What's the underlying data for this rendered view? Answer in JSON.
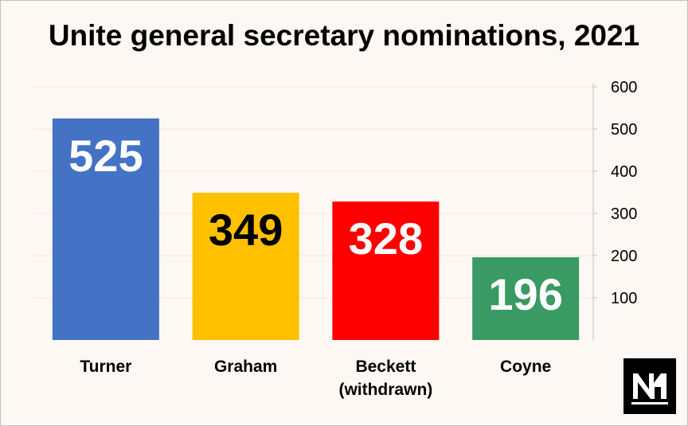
{
  "chart_data": {
    "type": "bar",
    "title": "Unite general secretary nominations, 2021",
    "categories": [
      "Turner",
      "Graham",
      "Beckett",
      "Coyne"
    ],
    "category_sublabels": [
      "",
      "",
      "(withdrawn)",
      ""
    ],
    "values": [
      525,
      349,
      328,
      196
    ],
    "colors": [
      "#4472c4",
      "#ffc000",
      "#ff0000",
      "#3a9a63"
    ],
    "label_colors": [
      "#ffffff",
      "#000000",
      "#ffffff",
      "#ffffff"
    ],
    "ylim": [
      0,
      600
    ],
    "yticks": [
      100,
      200,
      300,
      400,
      500,
      600
    ],
    "y_axis_position": "right",
    "grid": true,
    "xlabel": "",
    "ylabel": ""
  },
  "logo": {
    "icon": "nm-logo-icon"
  }
}
